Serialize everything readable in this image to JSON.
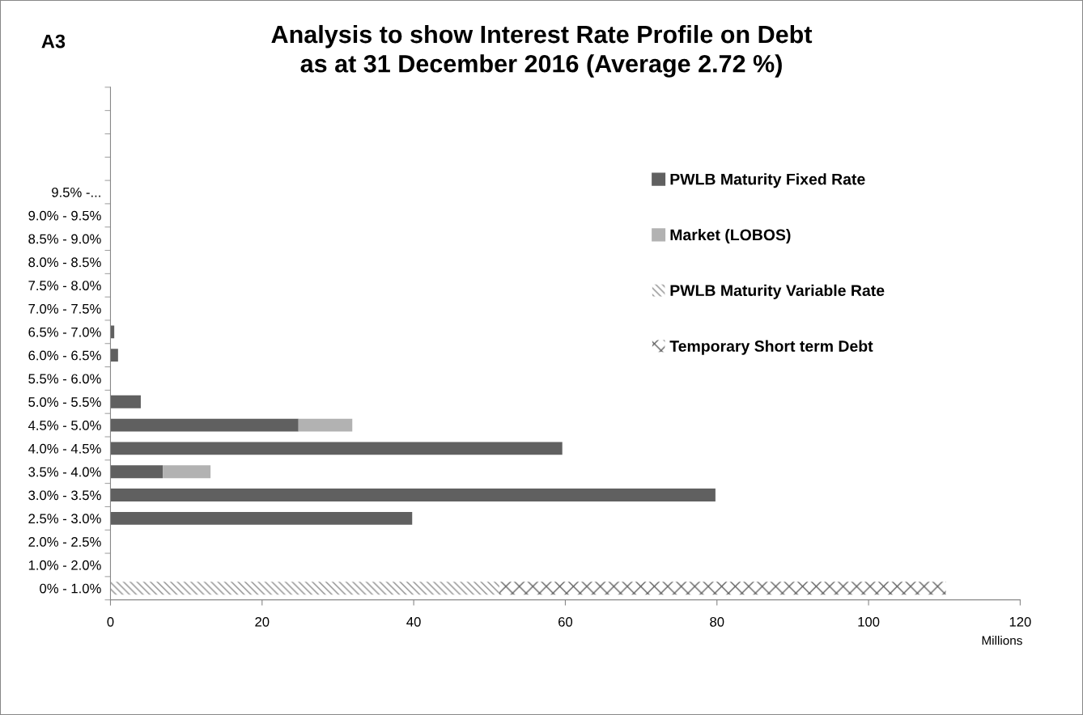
{
  "chart_data": {
    "type": "bar",
    "orientation": "horizontal",
    "stacked": true,
    "title": "Analysis to show Interest Rate Profile on Debt\nas at 31 December 2016 (Average 2.72 %)",
    "annotations": [
      "A3"
    ],
    "xlabel": "Millions",
    "categories": [
      null,
      null,
      null,
      null,
      "9.5% -...",
      "9.0% - 9.5%",
      "8.5% - 9.0%",
      "8.0% - 8.5%",
      "7.5% - 8.0%",
      "7.0% - 7.5%",
      "6.5% - 7.0%",
      "6.0% - 6.5%",
      "5.5% - 6.0%",
      "5.0% - 5.5%",
      "4.5% - 5.0%",
      "4.0% - 4.5%",
      "3.5% - 4.0%",
      "3.0% - 3.5%",
      "2.5% - 3.0%",
      "2.0% - 2.5%",
      "1.0% - 2.0%",
      "0% - 1.0%"
    ],
    "series": [
      {
        "name": "PWLB Maturity Fixed Rate",
        "color": "#606060",
        "values": [
          null,
          null,
          null,
          null,
          null,
          null,
          null,
          null,
          null,
          null,
          0.5,
          1.0,
          null,
          4.0,
          24.8,
          59.6,
          6.9,
          79.8,
          39.8,
          null,
          null,
          null
        ]
      },
      {
        "name": "Market (LOBOS)",
        "color": "#b2b2b2",
        "values": [
          null,
          null,
          null,
          null,
          null,
          null,
          null,
          null,
          null,
          null,
          null,
          null,
          null,
          null,
          7.1,
          null,
          6.3,
          null,
          null,
          null,
          null,
          null
        ]
      },
      {
        "name": "PWLB Maturity Variable Rate",
        "color": "#8c8c8c",
        "values": [
          null,
          null,
          null,
          null,
          null,
          null,
          null,
          null,
          null,
          null,
          null,
          null,
          null,
          null,
          null,
          null,
          null,
          null,
          null,
          null,
          null,
          51.3
        ]
      },
      {
        "name": "Temporary Short term Debt",
        "color": "#606060",
        "values": [
          null,
          null,
          null,
          null,
          null,
          null,
          null,
          null,
          null,
          null,
          null,
          null,
          null,
          null,
          null,
          null,
          null,
          null,
          null,
          null,
          null,
          58.9
        ]
      }
    ],
    "xlim": [
      0,
      120
    ],
    "xticks": [
      0,
      20,
      40,
      60,
      80,
      100,
      120
    ],
    "grid": false,
    "legend": "right"
  }
}
